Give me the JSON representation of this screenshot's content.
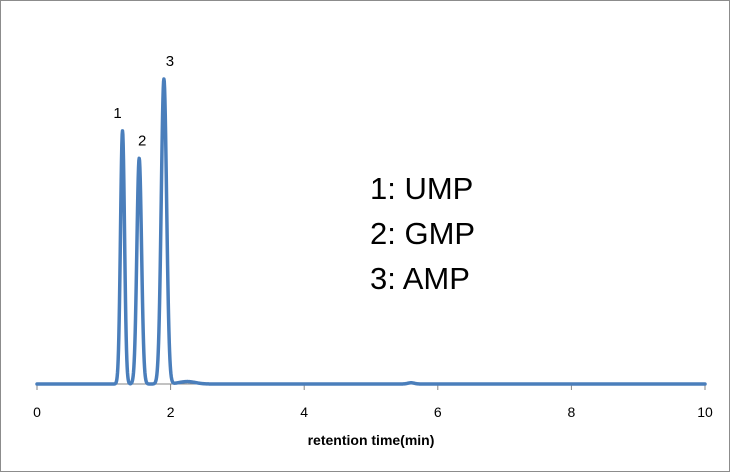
{
  "chart_data": {
    "type": "line",
    "title": "",
    "xlabel": "retention time(min)",
    "ylabel": "",
    "xlim": [
      0,
      10
    ],
    "x_ticks": [
      0,
      2,
      4,
      6,
      8,
      10
    ],
    "y_axis_visible": false,
    "grid": false,
    "line_color": "#4a7ebb",
    "series": [
      {
        "peaks": [
          {
            "label": "1",
            "name": "UMP",
            "x": 1.28,
            "height": 0.83,
            "sigma": 0.03
          },
          {
            "label": "2",
            "name": "GMP",
            "x": 1.53,
            "height": 0.74,
            "sigma": 0.035
          },
          {
            "label": "3",
            "name": "AMP",
            "x": 1.9,
            "height": 1.0,
            "sigma": 0.04
          }
        ],
        "minor_peaks": [
          {
            "x": 2.25,
            "height": 0.008,
            "sigma": 0.12
          },
          {
            "x": 5.6,
            "height": 0.004,
            "sigma": 0.05
          }
        ]
      }
    ],
    "annotations": [
      "1: UMP",
      "2: GMP",
      "3: AMP"
    ]
  }
}
